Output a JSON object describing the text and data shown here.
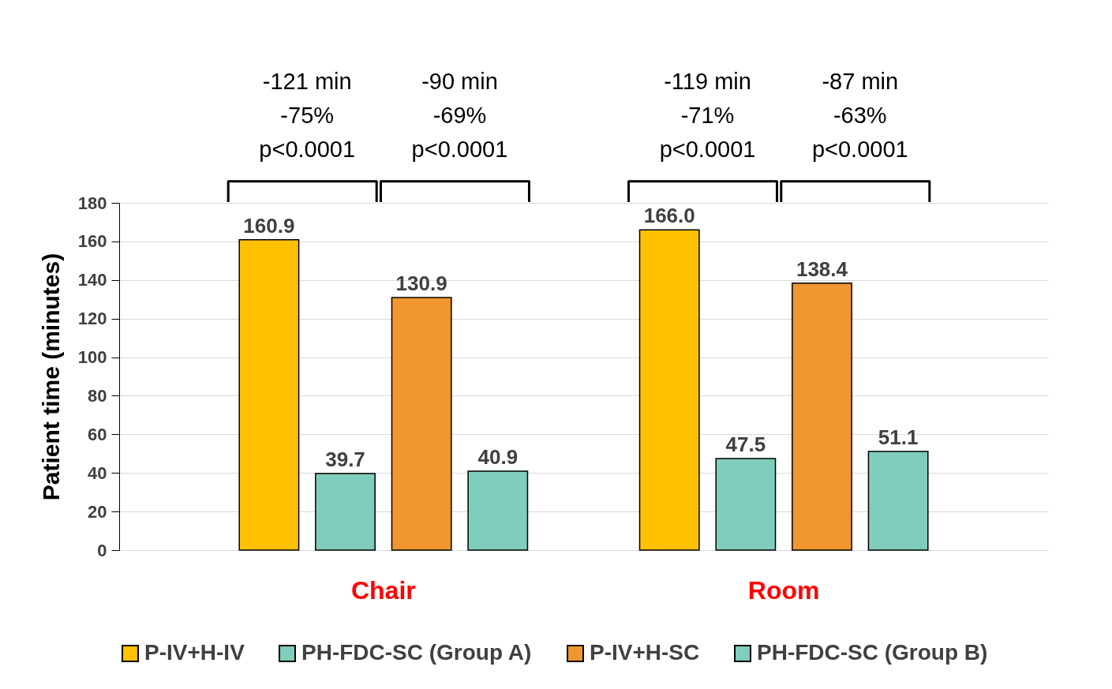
{
  "chart_data": {
    "type": "bar",
    "ylabel": "Patient time (minutes)",
    "categories": [
      "Chair",
      "Room"
    ],
    "series": [
      {
        "name": "P-IV+H-IV",
        "color": "#ffc000",
        "values": [
          160.9,
          166.0
        ],
        "value_labels": [
          "160.9",
          "166.0"
        ]
      },
      {
        "name": "PH-FDC-SC (Group A)",
        "color": "#7fcdbb",
        "values": [
          39.7,
          47.5
        ],
        "value_labels": [
          "39.7",
          "47.5"
        ]
      },
      {
        "name": "P-IV+H-SC",
        "color": "#f0962f",
        "values": [
          130.9,
          138.4
        ],
        "value_labels": [
          "130.9",
          "138.4"
        ]
      },
      {
        "name": "PH-FDC-SC (Group B)",
        "color": "#7fcdbb",
        "values": [
          40.9,
          51.1
        ],
        "value_labels": [
          "40.9",
          "51.1"
        ]
      }
    ],
    "ylim": [
      0,
      180
    ],
    "yticks": [
      0,
      20,
      40,
      60,
      80,
      100,
      120,
      140,
      160,
      180
    ],
    "grid": "y",
    "legend": "bottom",
    "annotations": [
      "-121 min\n-75%\np<0.0001",
      "-90 min\n-69%\np<0.0001",
      "-119 min\n-71%\np<0.0001",
      "-87 min\n-63%\np<0.0001"
    ]
  }
}
